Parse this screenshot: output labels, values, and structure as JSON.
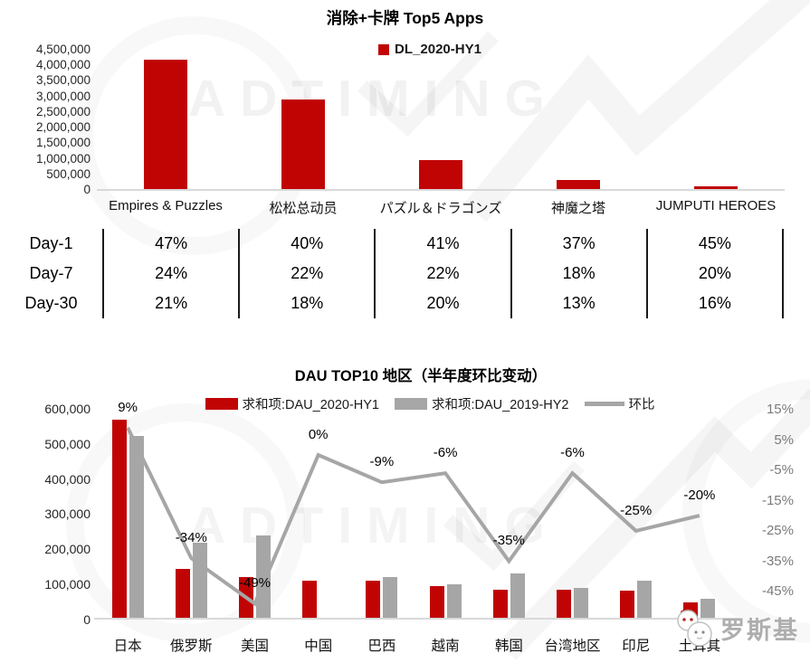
{
  "watermark": {
    "text": "ADTIMING"
  },
  "logo": {
    "text": "罗斯基"
  },
  "retention_table": {
    "rows": [
      {
        "label": "Day-1",
        "values": [
          "47%",
          "40%",
          "41%",
          "37%",
          "45%"
        ]
      },
      {
        "label": "Day-7",
        "values": [
          "24%",
          "22%",
          "22%",
          "18%",
          "20%"
        ]
      },
      {
        "label": "Day-30",
        "values": [
          "21%",
          "18%",
          "20%",
          "13%",
          "16%"
        ]
      }
    ]
  },
  "chart_data": [
    {
      "type": "bar",
      "title": "消除+卡牌 Top5 Apps",
      "categories": [
        "Empires & Puzzles",
        "松松总动员",
        "パズル＆ドラゴンズ",
        "神魔之塔",
        "JUMPUTI HEROES"
      ],
      "series": [
        {
          "name": "DL_2020-HY1",
          "color": "#c00404",
          "values": [
            4150000,
            2880000,
            920000,
            300000,
            80000
          ]
        }
      ],
      "xlabel": "",
      "ylabel": "",
      "ylim": [
        0,
        4500000
      ],
      "ytick_step": 500000,
      "grid": false,
      "legend_position": "top-center"
    },
    {
      "type": "bar+line",
      "title": "DAU TOP10 地区（半年度环比变动）",
      "categories": [
        "日本",
        "俄罗斯",
        "美国",
        "中国",
        "巴西",
        "越南",
        "韩国",
        "台湾地区",
        "印尼",
        "土耳其"
      ],
      "series": [
        {
          "type": "bar",
          "axis": "left",
          "name": "求和项:DAU_2020-HY1",
          "color": "#c00404",
          "values": [
            570000,
            145000,
            122000,
            110000,
            110000,
            95000,
            86000,
            84000,
            82000,
            48000
          ]
        },
        {
          "type": "bar",
          "axis": "left",
          "name": "求和项:DAU_2019-HY2",
          "color": "#a6a6a6",
          "values": [
            523000,
            220000,
            240000,
            0,
            121000,
            101000,
            132000,
            89000,
            110000,
            60000
          ]
        },
        {
          "type": "line",
          "axis": "right",
          "name": "环比",
          "color": "#a6a6a6",
          "values_pct": [
            9,
            -34,
            -49,
            0,
            -9,
            -6,
            -35,
            -6,
            -25,
            -20
          ],
          "labels": [
            "9%",
            "-34%",
            "-49%",
            "0%",
            "-9%",
            "-6%",
            "-35%",
            "-6%",
            "-25%",
            "-20%"
          ]
        }
      ],
      "left_ylim": [
        0,
        600000
      ],
      "left_ytick_step": 100000,
      "right_yticks": [
        "15%",
        "5%",
        "-5%",
        "-15%",
        "-25%",
        "-35%",
        "-45%"
      ],
      "grid": false,
      "legend_position": "top-center"
    }
  ]
}
